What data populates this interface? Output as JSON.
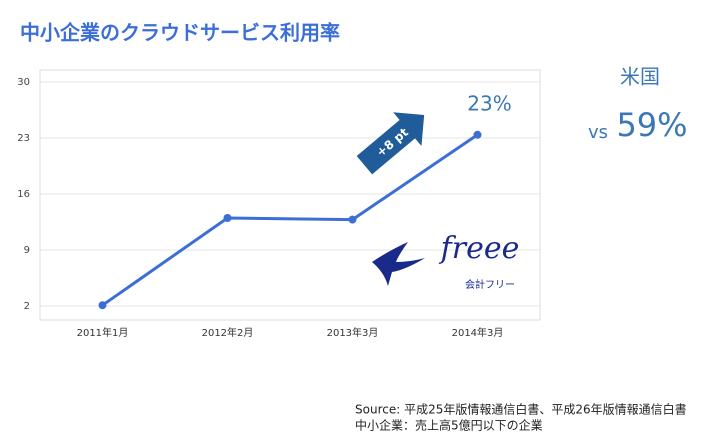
{
  "chart_data": {
    "type": "line",
    "title": "中小企業のクラウドサービス利用率",
    "categories": [
      "2011年1月",
      "2012年2月",
      "2013年3月",
      "2014年3月"
    ],
    "values": [
      2.1,
      13,
      12.8,
      23.4
    ],
    "value_labels": [
      null,
      null,
      null,
      "23%"
    ],
    "color": "#3c6fd6",
    "ylim": [
      0.25,
      31.5
    ],
    "yticks": [
      2,
      9,
      16,
      23,
      30
    ],
    "grid": true,
    "annotations": {
      "arrow": "+8 pt",
      "us_label": "米国",
      "us_prefix": "vs",
      "us_value": "59%"
    },
    "logo": {
      "name": "freee",
      "subtitle": "会計フリー"
    },
    "source": [
      "Source: 平成25年版情報通信白書、平成26年版情報通信白書",
      "中小企業：売上高5億円以下の企業"
    ]
  }
}
